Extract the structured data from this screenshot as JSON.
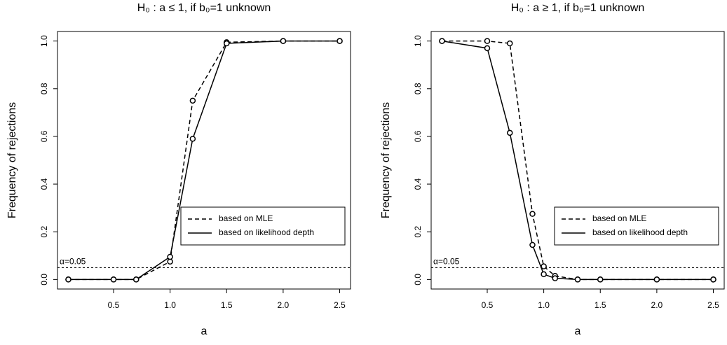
{
  "chart_data": [
    {
      "type": "line",
      "title": "H₀ : a ≤ 1, if b₀=1 unknown",
      "x_label": "a",
      "y_label": "Frequency of rejections",
      "x": [
        0.1,
        0.5,
        0.7,
        1.0,
        1.2,
        1.5,
        2.0,
        2.5
      ],
      "series": [
        {
          "name": "based on MLE",
          "color": "#000000",
          "line_style": "dashed",
          "values": [
            0,
            0,
            0,
            0.075,
            0.75,
            0.995,
            1,
            1
          ]
        },
        {
          "name": "based on likelihood depth",
          "color": "#000000",
          "line_style": "solid",
          "values": [
            0,
            0,
            0,
            0.095,
            0.59,
            0.99,
            1,
            1
          ]
        }
      ],
      "xlim": [
        0.004,
        2.596
      ],
      "ylim": [
        -0.04,
        1.04
      ],
      "xticks": [
        0.5,
        {
          "value": 1.0,
          "label": "1.0"
        },
        1.5,
        {
          "value": 2.0,
          "label": "2.0"
        },
        2.5
      ],
      "yticks": [
        {
          "value": 0,
          "label": "0.0"
        },
        0.2,
        0.4,
        0.6,
        0.8,
        {
          "value": 1,
          "label": "1.0"
        }
      ],
      "hline": 0.05,
      "hline_label": "α=0.05",
      "legend": "right"
    },
    {
      "type": "line",
      "title": "H₀ : a ≥ 1, if b₀=1 unknown",
      "x_label": "a",
      "y_label": "Frequency of rejections",
      "x": [
        0.1,
        0.5,
        0.7,
        0.9,
        1.0,
        1.1,
        1.3,
        1.5,
        2.0,
        2.5
      ],
      "series": [
        {
          "name": "based on MLE",
          "color": "#000000",
          "line_style": "dashed",
          "values": [
            1,
            1,
            0.99,
            0.275,
            0.055,
            0.015,
            0,
            0,
            0,
            0
          ]
        },
        {
          "name": "based on likelihood depth",
          "color": "#000000",
          "line_style": "solid",
          "values": [
            1,
            0.97,
            0.615,
            0.145,
            0.022,
            0.005,
            0,
            0,
            0,
            0
          ]
        }
      ],
      "xlim": [
        0.004,
        2.596
      ],
      "ylim": [
        -0.04,
        1.04
      ],
      "xticks": [
        0.5,
        {
          "value": 1.0,
          "label": "1.0"
        },
        1.5,
        {
          "value": 2.0,
          "label": "2.0"
        },
        2.5
      ],
      "yticks": [
        {
          "value": 0,
          "label": "0.0"
        },
        0.2,
        0.4,
        0.6,
        0.8,
        {
          "value": 1,
          "label": "1.0"
        }
      ],
      "hline": 0.05,
      "hline_label": "α=0.05",
      "legend": "right"
    }
  ]
}
